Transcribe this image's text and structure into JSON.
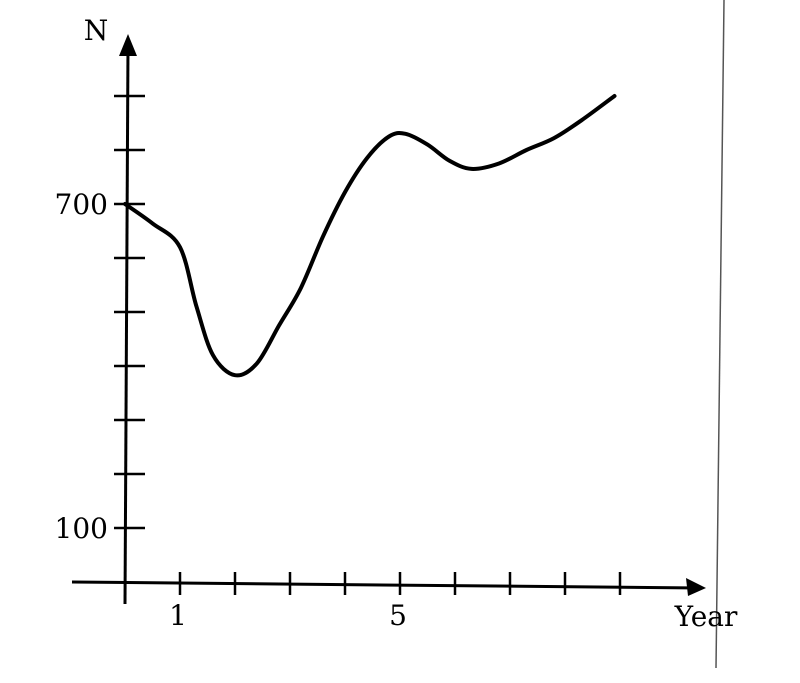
{
  "chart_data": {
    "type": "line",
    "ylabel": "N",
    "xlabel": "Year",
    "xlim": [
      0,
      9
    ],
    "ylim": [
      0,
      1000
    ],
    "x_ticks": [
      0,
      1,
      2,
      3,
      4,
      5,
      6,
      7,
      8,
      9
    ],
    "x_tick_labels": [
      {
        "value": 1,
        "text": "1"
      },
      {
        "value": 5,
        "text": "5"
      }
    ],
    "y_ticks": [
      100,
      200,
      300,
      400,
      500,
      600,
      700,
      800,
      900
    ],
    "y_tick_labels": [
      {
        "value": 100,
        "text": "100"
      },
      {
        "value": 700,
        "text": "700"
      }
    ],
    "grid": false,
    "series": [
      {
        "x": [
          0,
          0.5,
          1,
          1.3,
          1.6,
          2,
          2.4,
          2.8,
          3.2,
          3.6,
          4,
          4.4,
          4.8,
          5.1,
          5.5,
          5.9,
          6.3,
          6.8,
          7.3,
          7.8,
          8.3,
          8.9
        ],
        "y": [
          700,
          664,
          620,
          510,
          420,
          383,
          405,
          475,
          545,
          640,
          722,
          785,
          825,
          830,
          810,
          780,
          765,
          775,
          800,
          822,
          855,
          900
        ]
      }
    ]
  }
}
